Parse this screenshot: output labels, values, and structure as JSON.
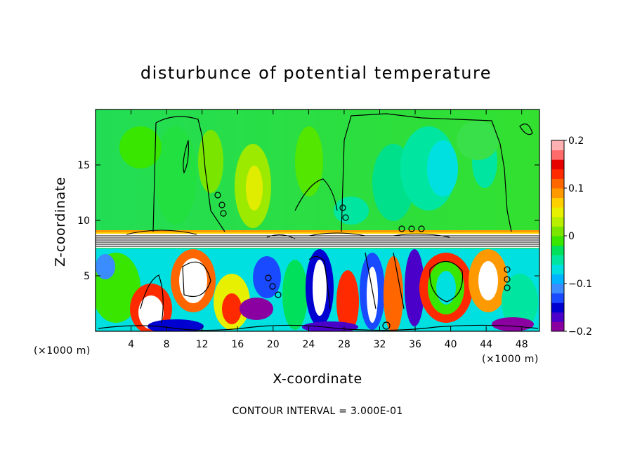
{
  "chart_data": {
    "type": "heatmap",
    "title": "disturbunce of potential temperature",
    "xlabel": "X-coordinate",
    "ylabel": "Z-coordinate",
    "x_unit": "(×1000 m)",
    "y_unit": "(×1000 m)",
    "x_ticks": [
      4,
      8,
      12,
      16,
      20,
      24,
      28,
      32,
      36,
      40,
      44,
      48
    ],
    "y_ticks": [
      5,
      10,
      15
    ],
    "xlim": [
      0,
      50
    ],
    "ylim": [
      0,
      20
    ],
    "colorbar": {
      "range": [
        -0.2,
        0.2
      ],
      "ticks": [
        0.2,
        0.1,
        0,
        -0.1,
        -0.2
      ],
      "tick_labels": [
        "0.2",
        "0.1",
        "0",
        "−0.1",
        "−0.2"
      ],
      "colors": [
        "#8b00a0",
        "#4a00c8",
        "#0000d0",
        "#1a4aff",
        "#3a8cff",
        "#00b4ff",
        "#00e0e0",
        "#00e6a0",
        "#00e05a",
        "#39e600",
        "#7ae600",
        "#b8ee00",
        "#e6f000",
        "#ffd000",
        "#ff9900",
        "#ff6600",
        "#ff2a00",
        "#e60000",
        "#ff6a6a",
        "#ffb0b0"
      ]
    },
    "footer": "CONTOUR INTERVAL = 3.000E-01"
  }
}
